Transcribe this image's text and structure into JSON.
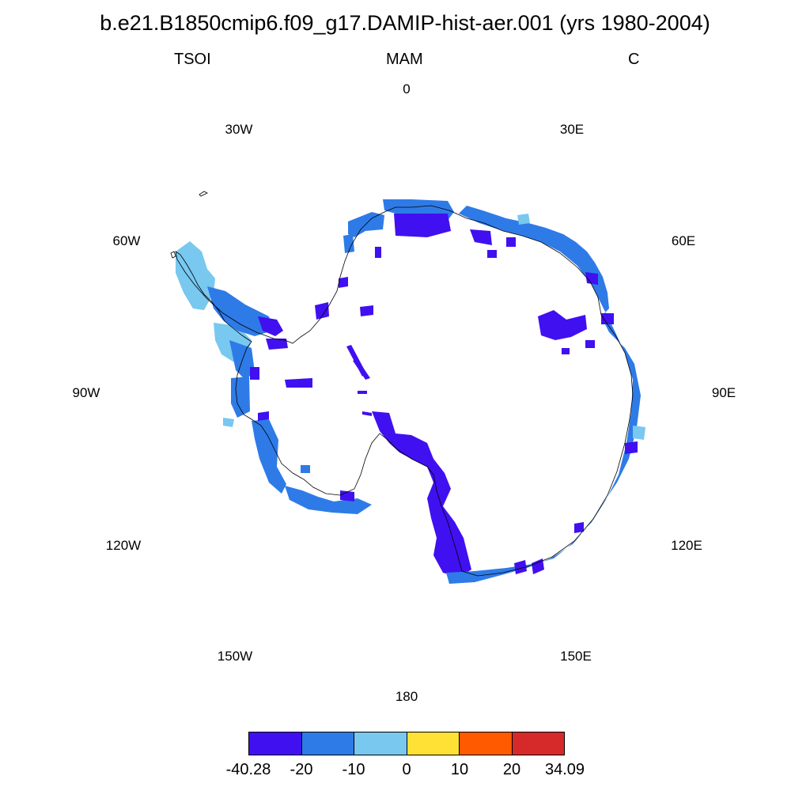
{
  "title": "b.e21.B1850cmip6.f09_g17.DAMIP-hist-aer.001 (yrs 1980-2004)",
  "left_label": "TSOI",
  "center_label": "MAM",
  "right_label": "C",
  "projection": "south polar stereographic",
  "longitude_labels": [
    "0",
    "30E",
    "60E",
    "90E",
    "120E",
    "150E",
    "180",
    "150W",
    "120W",
    "90W",
    "60W",
    "30W"
  ],
  "colorbar": {
    "colors": [
      "#4010f0",
      "#2e7be8",
      "#78c8f0",
      "#ffe135",
      "#ff5a00",
      "#d62a2a"
    ],
    "tick_labels": [
      "-40.28",
      "-20",
      "-10",
      "0",
      "10",
      "20",
      "34.09"
    ]
  },
  "colors": {
    "coastline": "#000000",
    "strong_cold": "#4010f0",
    "mid_cold": "#2e7be8",
    "weak_cold": "#78c8f0"
  }
}
